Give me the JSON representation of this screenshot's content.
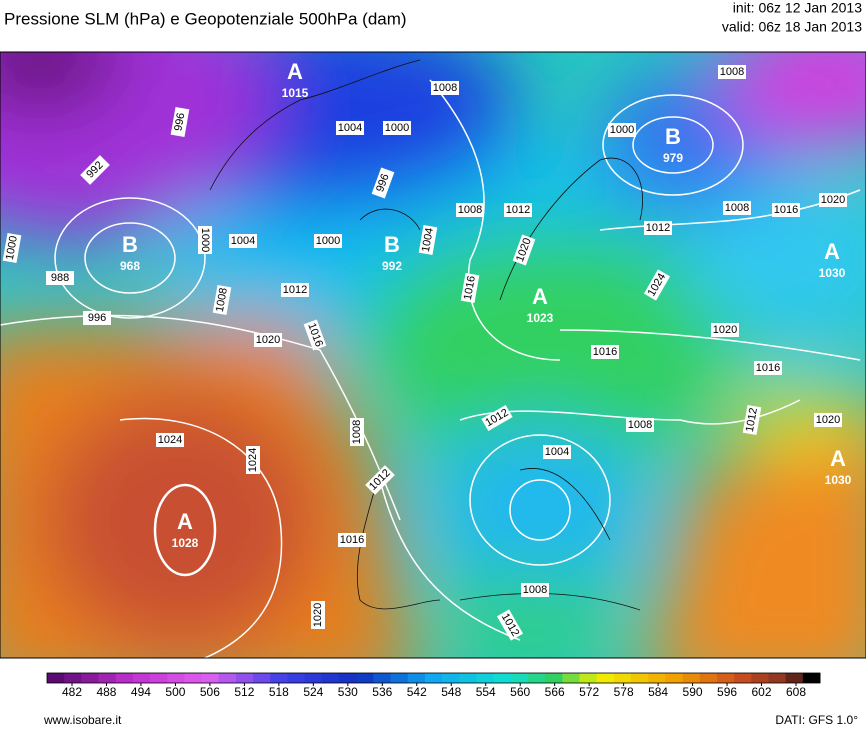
{
  "header": {
    "title": "Pressione SLM (hPa) e Geopotenziale 500hPa (dam)",
    "init": "init: 06z 12 Jan 2013",
    "valid": "valid: 06z 18 Jan 2013"
  },
  "centers": [
    {
      "letter": "A",
      "value": 1015
    },
    {
      "letter": "B",
      "value": 968
    },
    {
      "letter": "B",
      "value": 992
    },
    {
      "letter": "B",
      "value": 979
    },
    {
      "letter": "A",
      "value": 1030
    },
    {
      "letter": "A",
      "value": 1028
    },
    {
      "letter": "A",
      "value": 1030
    },
    {
      "letter": "A",
      "value": 1023
    }
  ],
  "isobar_labels": [
    1008,
    1008,
    1004,
    1000,
    996,
    992,
    1000,
    1000,
    988,
    996,
    1004,
    1000,
    996,
    1008,
    1012,
    1012,
    1008,
    1016,
    1020,
    1000,
    1008,
    1012,
    1016,
    1020,
    1004,
    1016,
    1020,
    1024,
    1020,
    1016,
    1016,
    1012,
    1008,
    1004,
    1012,
    1020,
    1024,
    1024,
    1008,
    1012,
    1016,
    1020,
    1008,
    1012
  ],
  "colorbar": {
    "ticks": [
      482,
      488,
      494,
      500,
      506,
      512,
      518,
      524,
      530,
      536,
      542,
      548,
      554,
      560,
      566,
      572,
      578,
      584,
      590,
      596,
      602,
      608
    ]
  },
  "footer": {
    "source": "www.isobare.it",
    "data": "DATI: GFS 1.0°"
  }
}
